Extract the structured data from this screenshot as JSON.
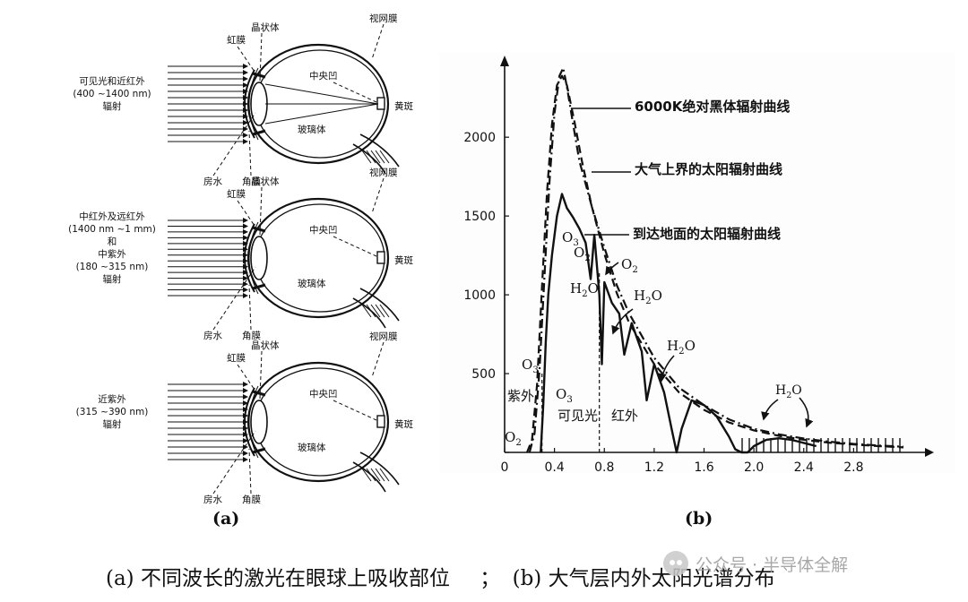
{
  "panel_a": {
    "label": "(a)",
    "eye_parts": {
      "iris": "虹膜",
      "lens": "晶状体",
      "retina": "视网膜",
      "fovea": "中央凹",
      "macula": "黄斑",
      "vitreous": "玻璃体",
      "aqueous": "房水",
      "cornea": "角膜"
    },
    "eyes": [
      {
        "radiation": [
          "可见光和近红外",
          "(400 ~1400 nm)",
          "辐射"
        ]
      },
      {
        "radiation": [
          "中红外及远红外",
          "(1400 nm ~1 mm)",
          "和",
          "中紫外",
          "(180 ~315 nm)",
          "辐射"
        ]
      },
      {
        "radiation": [
          "近紫外",
          "(315 ~390 nm)",
          "辐射"
        ]
      }
    ]
  },
  "panel_b": {
    "label": "(b)",
    "annotations": {
      "blackbody": "6000K绝对黑体辐射曲线",
      "extraterrestrial": "大气上界的太阳辐射曲线",
      "ground": "到达地面的太阳辐射曲线",
      "uv": "紫外",
      "visible": "可见光",
      "ir": "红外"
    },
    "absorbers": {
      "o3": "O3",
      "o2": "O2",
      "h2o": "H2O"
    }
  },
  "chart_data": {
    "type": "line",
    "x_ticks": [
      "0",
      "0.4",
      "0.8",
      "1.2",
      "1.6",
      "2.0",
      "2.4",
      "2.8"
    ],
    "y_ticks": [
      "0",
      "500",
      "1000",
      "1500",
      "2000"
    ],
    "xlim": [
      0,
      3.2
    ],
    "ylim": [
      0,
      2450
    ],
    "visible_band": [
      0.3,
      0.76
    ],
    "series": [
      {
        "name": "6000K绝对黑体辐射曲线",
        "style": "dashed",
        "x": [
          0.18,
          0.22,
          0.26,
          0.3,
          0.34,
          0.38,
          0.42,
          0.46,
          0.5,
          0.56,
          0.62,
          0.7,
          0.8,
          0.9,
          1.0,
          1.2,
          1.4,
          1.6,
          1.8,
          2.0,
          2.2,
          2.4,
          2.6,
          2.8,
          3.0,
          3.2
        ],
        "y": [
          0,
          80,
          430,
          1050,
          1650,
          2080,
          2330,
          2390,
          2330,
          2100,
          1850,
          1560,
          1260,
          1010,
          820,
          560,
          380,
          270,
          190,
          140,
          105,
          80,
          62,
          50,
          40,
          32
        ]
      },
      {
        "name": "大气上界的太阳辐射曲线",
        "style": "dashdot",
        "x": [
          0.2,
          0.24,
          0.28,
          0.32,
          0.36,
          0.4,
          0.44,
          0.47,
          0.5,
          0.55,
          0.6,
          0.7,
          0.8,
          0.9,
          1.0,
          1.2,
          1.4,
          1.6,
          1.8,
          2.0,
          2.2,
          2.4,
          2.6,
          2.8,
          3.0,
          3.2
        ],
        "y": [
          0,
          120,
          520,
          1120,
          1720,
          2150,
          2390,
          2440,
          2320,
          2080,
          1850,
          1560,
          1300,
          1060,
          880,
          600,
          410,
          300,
          210,
          150,
          115,
          88,
          68,
          54,
          44,
          36
        ]
      },
      {
        "name": "到达地面的太阳辐射曲线",
        "style": "solid",
        "x": [
          0.29,
          0.31,
          0.33,
          0.35,
          0.38,
          0.42,
          0.46,
          0.5,
          0.55,
          0.6,
          0.65,
          0.69,
          0.72,
          0.76,
          0.78,
          0.8,
          0.86,
          0.92,
          0.96,
          1.02,
          1.1,
          1.14,
          1.2,
          1.28,
          1.34,
          1.38,
          1.42,
          1.5,
          1.6,
          1.7,
          1.8,
          1.85,
          1.9,
          1.95,
          2.0,
          2.1,
          2.2,
          2.3,
          2.4,
          2.5
        ],
        "y": [
          0,
          300,
          700,
          1000,
          1250,
          1500,
          1640,
          1550,
          1490,
          1420,
          1330,
          1100,
          1380,
          1000,
          560,
          1080,
          950,
          880,
          620,
          820,
          640,
          330,
          560,
          380,
          150,
          0,
          150,
          330,
          300,
          230,
          100,
          20,
          0,
          0,
          40,
          80,
          90,
          80,
          60,
          40
        ]
      }
    ]
  },
  "caption": {
    "left": "(a)  不同波长的激光在眼球上吸收部位",
    "sep": "；",
    "right": "(b)  大气层内外太阳光谱分布"
  },
  "watermark": {
    "text": "公众号 · 半导体全解"
  }
}
